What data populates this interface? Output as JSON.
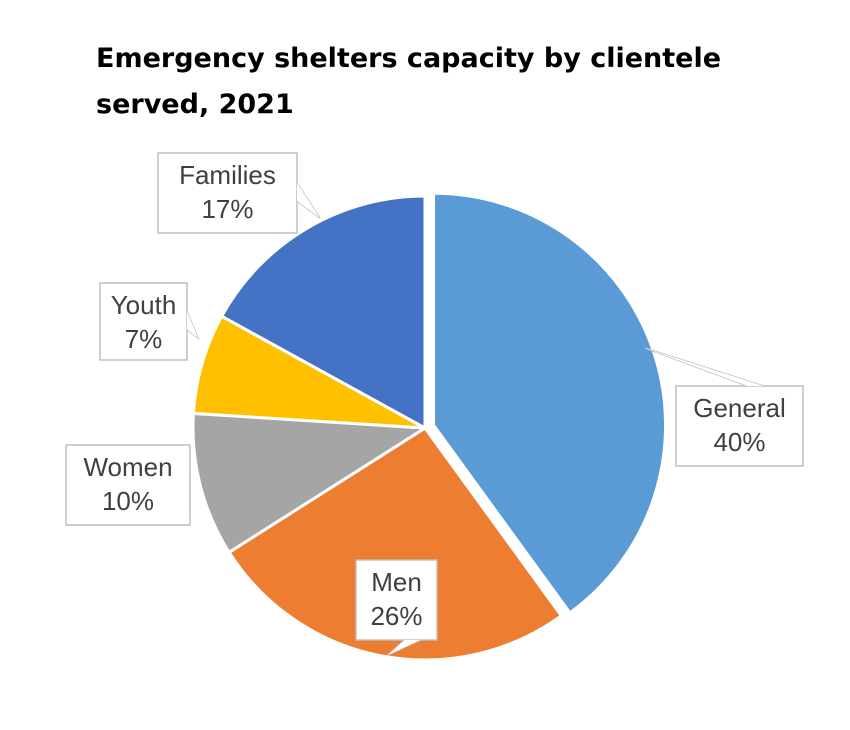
{
  "chart_data": {
    "type": "pie",
    "title": "Emergency shelters capacity by clientele served, 2021",
    "categories": [
      "General",
      "Men",
      "Women",
      "Youth",
      "Families"
    ],
    "values": [
      40,
      26,
      10,
      7,
      17
    ],
    "value_labels": [
      "40%",
      "26%",
      "10%",
      "7%",
      "17%"
    ],
    "colors": [
      "#5b9bd5",
      "#ed7d31",
      "#a5a5a5",
      "#ffc000",
      "#4472c4"
    ]
  }
}
